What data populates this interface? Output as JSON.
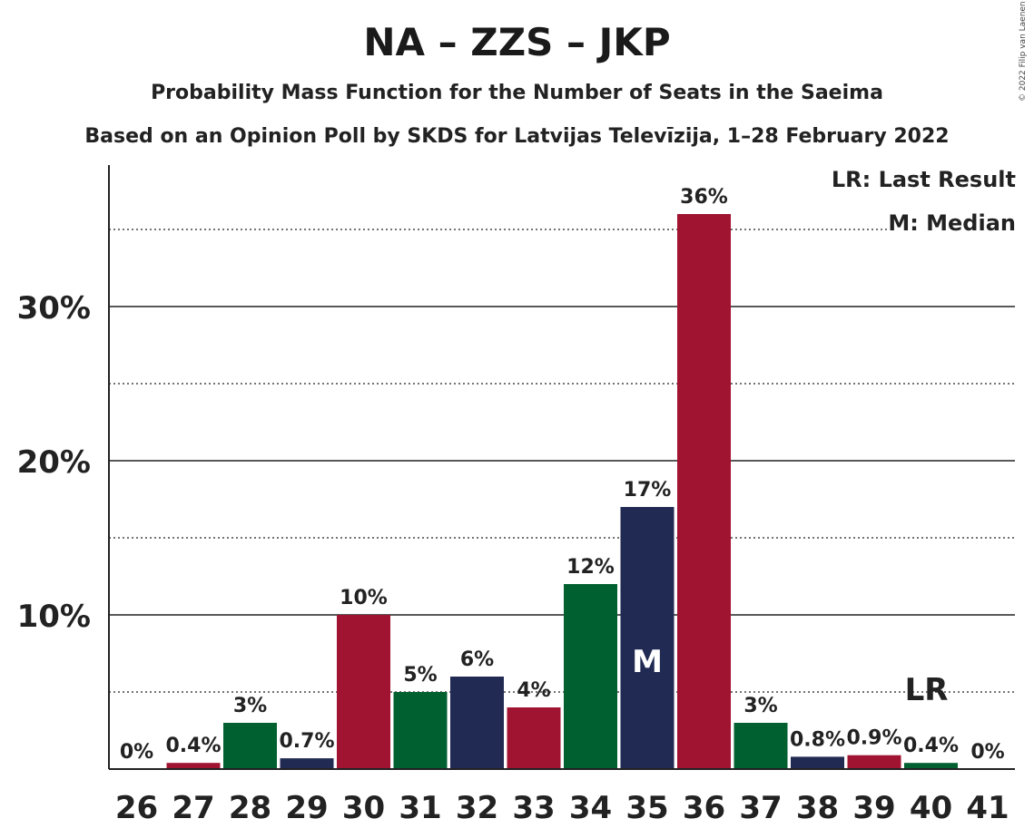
{
  "title": "NA – ZZS – JKP",
  "subtitle": "Probability Mass Function for the Number of Seats in the Saeima",
  "subtitle2": "Based on an Opinion Poll by SKDS for Latvijas Televīzija, 1–28 February 2022",
  "copyright": "© 2022 Filip van Laenen",
  "legend": {
    "last_result": "LR: Last Result",
    "median": "M: Median"
  },
  "colors": {
    "red": "#a01432",
    "green": "#006030",
    "navy": "#212a52",
    "text": "#222222"
  },
  "chart_data": {
    "type": "bar",
    "title": "NA – ZZS – JKP",
    "xlabel": "",
    "ylabel": "",
    "categories": [
      "26",
      "27",
      "28",
      "29",
      "30",
      "31",
      "32",
      "33",
      "34",
      "35",
      "36",
      "37",
      "38",
      "39",
      "40",
      "41"
    ],
    "values": [
      0,
      0.4,
      3,
      0.7,
      10,
      5,
      6,
      4,
      12,
      17,
      36,
      3,
      0.8,
      0.9,
      0.4,
      0
    ],
    "value_labels": [
      "0%",
      "0.4%",
      "3%",
      "0.7%",
      "10%",
      "5%",
      "6%",
      "4%",
      "12%",
      "17%",
      "36%",
      "3%",
      "0.8%",
      "0.9%",
      "0.4%",
      "0%"
    ],
    "bar_colors": [
      "red",
      "red",
      "green",
      "navy",
      "red",
      "green",
      "navy",
      "red",
      "green",
      "navy",
      "red",
      "green",
      "navy",
      "red",
      "green",
      "red"
    ],
    "ylim": [
      0,
      39
    ],
    "yticks": [
      10,
      20,
      30
    ],
    "ytick_labels": [
      "10%",
      "20%",
      "30%"
    ],
    "minor_gridlines": [
      5,
      15,
      25,
      35
    ],
    "median_seat": "35",
    "median_label": "M",
    "last_result_seat": "40",
    "last_result_label": "LR"
  }
}
